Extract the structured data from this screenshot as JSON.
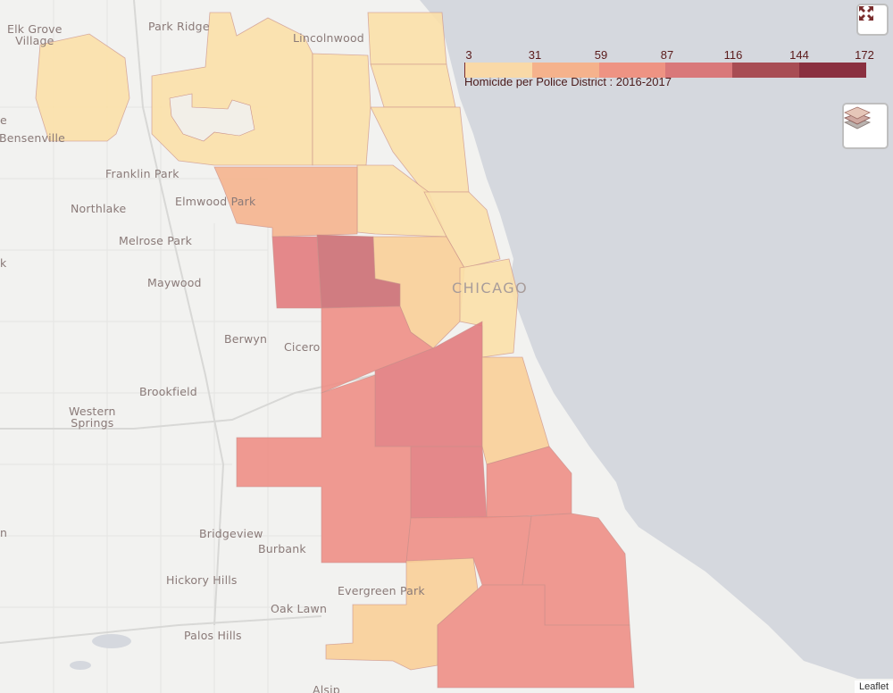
{
  "places": {
    "elk_grove_village": "Elk Grove\nVillage",
    "park_ridge": "Park Ridge",
    "lincolnwood": "Lincolnwood",
    "bensenville": "Bensenville",
    "franklin_park": "Franklin Park",
    "elmwood_park": "Elmwood Park",
    "northlake": "Northlake",
    "melrose_park": "Melrose Park",
    "maywood": "Maywood",
    "chicago": "CHICAGO",
    "berwyn": "Berwyn",
    "cicero": "Cicero",
    "brookfield": "Brookfield",
    "western_springs": "Western\nSprings",
    "bridgeview": "Bridgeview",
    "burbank": "Burbank",
    "hickory_hills": "Hickory Hills",
    "evergreen_park": "Evergreen Park",
    "oak_lawn": "Oak Lawn",
    "palos_hills": "Palos Hills",
    "edge_e": "e",
    "edge_k": "k",
    "edge_n": "n",
    "bottom_partial": "Alsip"
  },
  "legend": {
    "title": "Homicide per Police District : 2016-2017",
    "ticks": [
      "3",
      "31",
      "59",
      "87",
      "116",
      "144",
      "172"
    ],
    "colors": [
      "#f9d9a7",
      "#f5b28c",
      "#ee9383",
      "#d9787a",
      "#a84d54",
      "#8a3040"
    ]
  },
  "district_colors": {
    "lightest": "#fbe0a8",
    "light": "#f9cf98",
    "orange": "#f5b48e",
    "salmon": "#f2a08f",
    "red": "#ee8f86",
    "dark": "#e27c7e",
    "darker": "#cc6f74"
  },
  "controls": {
    "fullscreen": "fullscreen-icon",
    "layers": "layers-icon"
  },
  "attribution": "Leaflet"
}
